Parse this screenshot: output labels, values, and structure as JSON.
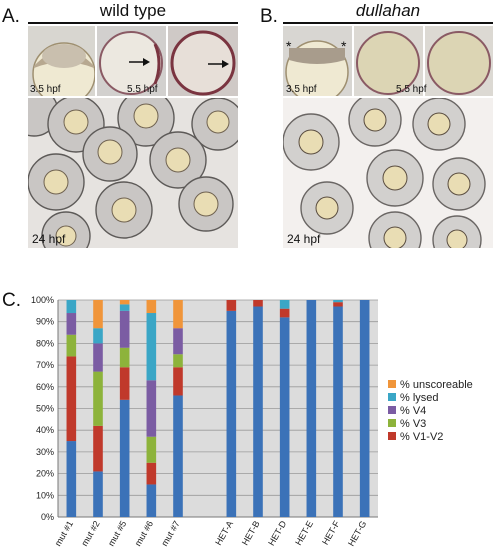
{
  "panelA": {
    "letter": "A.",
    "title": "wild type",
    "stages": [
      "3.5 hpf",
      "5.5 hpf",
      "24 hpf"
    ]
  },
  "panelB": {
    "letter": "B.",
    "title": "dullahan",
    "stages": [
      "3.5 hpf",
      "5.5 hpf",
      "24 hpf"
    ],
    "asterisk": "*"
  },
  "panelC": {
    "letter": "C."
  },
  "colors": {
    "V1-V2": "#c0392b",
    "V3": "#8db33b",
    "V4": "#7b5ca3",
    "lysed": "#3aa6c6",
    "unscoreable": "#f0953a",
    "normal": "#3b72b8"
  },
  "chart_data": {
    "type": "bar",
    "stacked": true,
    "categories": [
      "mut #1",
      "mut #2",
      "mut #5",
      "mut #6",
      "mut #7",
      "",
      "HET-A",
      "HET-B",
      "HET-D",
      "HET-E",
      "HET-F",
      "HET-G"
    ],
    "series": [
      {
        "key": "normal",
        "values": [
          35,
          21,
          54,
          15,
          56,
          null,
          95,
          97,
          92,
          100,
          97,
          100
        ]
      },
      {
        "key": "V1-V2",
        "name": "% V1-V2",
        "values": [
          39,
          21,
          15,
          10,
          13,
          null,
          5,
          3,
          4,
          0,
          2,
          0
        ]
      },
      {
        "key": "V3",
        "name": "% V3",
        "values": [
          10,
          25,
          9,
          12,
          6,
          null,
          0,
          0,
          0,
          0,
          0,
          0
        ]
      },
      {
        "key": "V4",
        "name": "% V4",
        "values": [
          10,
          13,
          17,
          26,
          12,
          null,
          0,
          0,
          0,
          0,
          0,
          0
        ]
      },
      {
        "key": "lysed",
        "name": "% lysed",
        "values": [
          6,
          7,
          3,
          31,
          0,
          null,
          0,
          0,
          4,
          0,
          1,
          0
        ]
      },
      {
        "key": "unscoreable",
        "name": "% unscoreable",
        "values": [
          0,
          13,
          2,
          6,
          13,
          null,
          0,
          0,
          0,
          0,
          0,
          0
        ]
      }
    ],
    "yticks": [
      "0%",
      "10%",
      "20%",
      "30%",
      "40%",
      "50%",
      "60%",
      "70%",
      "80%",
      "90%",
      "100%"
    ],
    "ylim": [
      0,
      100
    ],
    "grid": true,
    "legend_order": [
      "unscoreable",
      "lysed",
      "V4",
      "V3",
      "V1-V2"
    ],
    "legend_position": "right"
  }
}
